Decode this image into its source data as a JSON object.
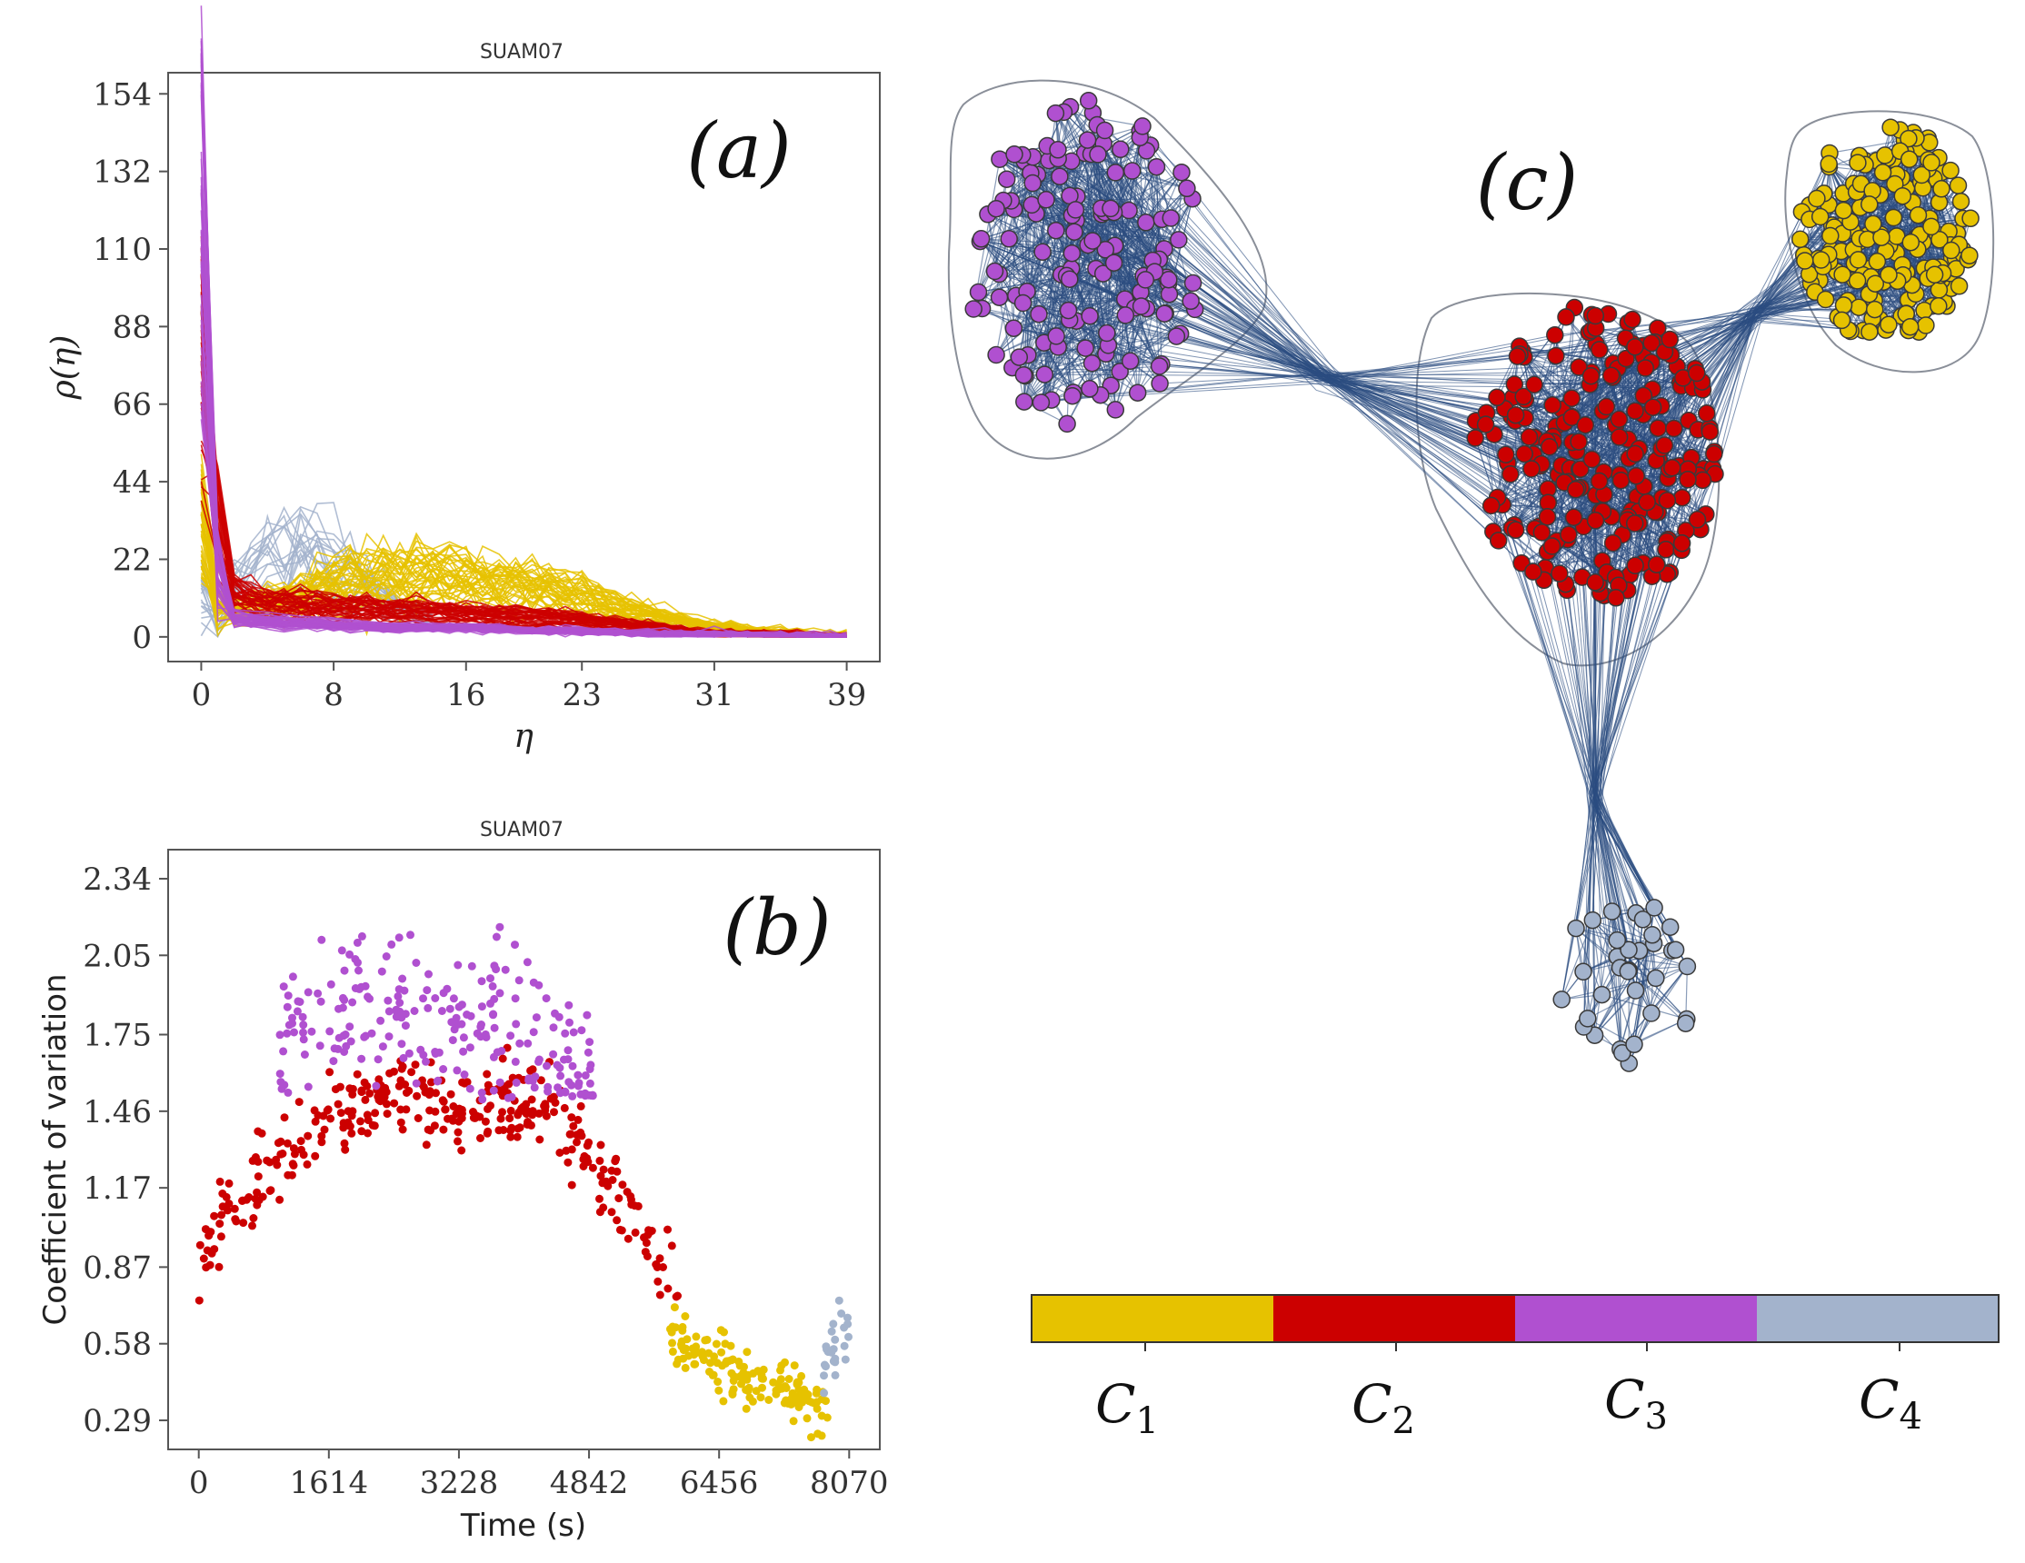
{
  "colors": {
    "C1": "#E6C200",
    "C2": "#CC0000",
    "C3": "#B050D0",
    "C4": "#A3B3CC",
    "edge": "#2B4C80",
    "axis": "#555555",
    "hull": "#8A8F99"
  },
  "chart_data": [
    {
      "panel": "(a)",
      "type": "line",
      "title": "SUAM07",
      "xlabel": "η",
      "ylabel": "ρ(η)",
      "xticks": [
        0,
        8,
        16,
        23,
        31,
        39
      ],
      "yticks": [
        0,
        22,
        44,
        66,
        88,
        110,
        132,
        154
      ],
      "xlim": [
        -2,
        41
      ],
      "ylim": [
        -7,
        160
      ],
      "series": [
        {
          "name": "C1",
          "color": "#E6C200",
          "x": [
            0,
            1,
            2,
            4,
            8,
            12,
            16,
            20,
            23,
            27,
            31,
            35,
            39
          ],
          "y": [
            40,
            12,
            8,
            10,
            16,
            19,
            18,
            15,
            12,
            7,
            3,
            1,
            0
          ]
        },
        {
          "name": "C2",
          "color": "#CC0000",
          "x": [
            0,
            1,
            2,
            4,
            8,
            12,
            16,
            20,
            23,
            27,
            31,
            35,
            39
          ],
          "y": [
            95,
            40,
            13,
            10,
            9,
            8,
            7,
            6,
            5,
            3,
            1,
            0.5,
            0
          ]
        },
        {
          "name": "C3",
          "color": "#B050D0",
          "x": [
            0,
            1,
            2,
            4,
            8,
            12,
            16,
            20,
            23,
            27,
            31,
            35,
            39
          ],
          "y": [
            150,
            25,
            6,
            5,
            4,
            3,
            3,
            2,
            2,
            1,
            1,
            0.5,
            0
          ]
        },
        {
          "name": "C4",
          "color": "#A3B3CC",
          "x": [
            0,
            1,
            2,
            4,
            6,
            8,
            10,
            12,
            16,
            23,
            31,
            39
          ],
          "y": [
            15,
            10,
            14,
            22,
            26,
            22,
            15,
            8,
            3,
            1,
            0.5,
            0
          ]
        }
      ]
    },
    {
      "panel": "(b)",
      "type": "scatter",
      "title": "SUAM07",
      "xlabel": "Time (s)",
      "ylabel": "Coefficient of variation",
      "xticks": [
        0,
        1614,
        3228,
        4842,
        6456,
        8070
      ],
      "yticks": [
        0.29,
        0.58,
        0.87,
        1.17,
        1.46,
        1.75,
        2.05,
        2.34
      ],
      "xlim": [
        -380,
        8450
      ],
      "ylim": [
        0.18,
        2.45
      ],
      "series": [
        {
          "name": "C1",
          "color": "#E6C200",
          "x": [
            5950,
            6200,
            6500,
            6800,
            7100,
            7400,
            7700
          ],
          "y": [
            0.6,
            0.55,
            0.5,
            0.45,
            0.42,
            0.38,
            0.34
          ]
        },
        {
          "name": "C2",
          "color": "#CC0000",
          "x": [
            0,
            500,
            1000,
            1614,
            2200,
            2800,
            3228,
            3800,
            4300,
            4842,
            5300,
            5800
          ],
          "y": [
            0.9,
            1.1,
            1.3,
            1.45,
            1.5,
            1.5,
            1.45,
            1.5,
            1.48,
            1.3,
            1.1,
            0.85
          ]
        },
        {
          "name": "C3",
          "color": "#B050D0",
          "x": [
            1000,
            1614,
            2200,
            2800,
            3228,
            3800,
            4300,
            4842
          ],
          "y": [
            1.65,
            1.8,
            1.85,
            1.8,
            1.75,
            1.8,
            1.7,
            1.55
          ]
        },
        {
          "name": "C4",
          "color": "#A3B3CC",
          "x": [
            7750,
            7850,
            7950,
            8050
          ],
          "y": [
            0.45,
            0.55,
            0.62,
            0.6
          ]
        }
      ]
    }
  ],
  "network": {
    "panel": "(c)",
    "clusters": [
      "C3",
      "C2",
      "C1",
      "C4"
    ]
  },
  "legend": {
    "entries": [
      {
        "label": "C",
        "sub": "1",
        "color": "#E6C200"
      },
      {
        "label": "C",
        "sub": "2",
        "color": "#CC0000"
      },
      {
        "label": "C",
        "sub": "3",
        "color": "#B050D0"
      },
      {
        "label": "C",
        "sub": "4",
        "color": "#A3B3CC"
      }
    ]
  }
}
